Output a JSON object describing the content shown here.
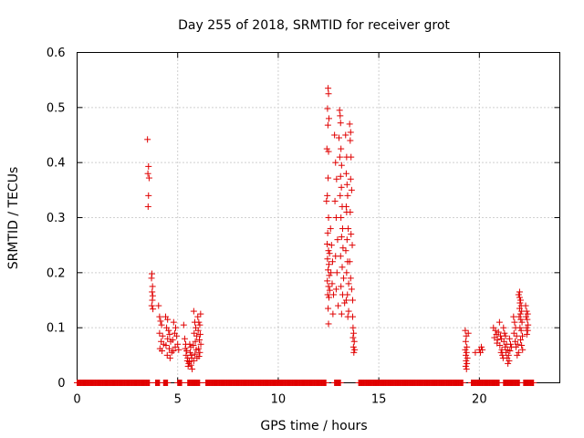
{
  "chart_data": {
    "type": "scatter",
    "title": "Day 255 of 2018, SRMTID for receiver grot",
    "xlabel": "GPS time / hours",
    "ylabel": "SRMTID / TECUs",
    "xlim": [
      0,
      24
    ],
    "ylim": [
      0,
      0.6
    ],
    "grid": true,
    "marker": "+",
    "marker_color": "#e00000",
    "x_ticks": [
      {
        "value": 0,
        "label": "0"
      },
      {
        "value": 5,
        "label": "5"
      },
      {
        "value": 10,
        "label": "10"
      },
      {
        "value": 15,
        "label": "15"
      },
      {
        "value": 20,
        "label": "20"
      }
    ],
    "y_ticks": [
      {
        "value": 0,
        "label": "0"
      },
      {
        "value": 0.1,
        "label": "0.1"
      },
      {
        "value": 0.2,
        "label": "0.2"
      },
      {
        "value": 0.3,
        "label": "0.3"
      },
      {
        "value": 0.4,
        "label": "0.4"
      },
      {
        "value": 0.5,
        "label": "0.5"
      },
      {
        "value": 0.6,
        "label": "0.6"
      }
    ],
    "zero_segments": [
      [
        0.0,
        3.6
      ],
      [
        3.9,
        4.1
      ],
      [
        4.3,
        4.5
      ],
      [
        5.0,
        5.2
      ],
      [
        5.5,
        6.1
      ],
      [
        6.4,
        12.4
      ],
      [
        12.8,
        13.1
      ],
      [
        14.0,
        19.2
      ],
      [
        19.6,
        21.0
      ],
      [
        21.2,
        22.0
      ],
      [
        22.2,
        22.7
      ]
    ],
    "points": [
      [
        3.5,
        0.442
      ],
      [
        3.55,
        0.393
      ],
      [
        3.52,
        0.38
      ],
      [
        3.58,
        0.372
      ],
      [
        3.55,
        0.34
      ],
      [
        3.53,
        0.32
      ],
      [
        3.72,
        0.198
      ],
      [
        3.7,
        0.19
      ],
      [
        3.75,
        0.175
      ],
      [
        3.73,
        0.165
      ],
      [
        3.76,
        0.158
      ],
      [
        3.74,
        0.15
      ],
      [
        3.71,
        0.14
      ],
      [
        3.77,
        0.134
      ],
      [
        4.05,
        0.14
      ],
      [
        4.1,
        0.12
      ],
      [
        4.15,
        0.112
      ],
      [
        4.2,
        0.105
      ],
      [
        4.1,
        0.09
      ],
      [
        4.25,
        0.085
      ],
      [
        4.18,
        0.075
      ],
      [
        4.3,
        0.07
      ],
      [
        4.12,
        0.062
      ],
      [
        4.22,
        0.058
      ],
      [
        4.4,
        0.12
      ],
      [
        4.5,
        0.115
      ],
      [
        4.45,
        0.1
      ],
      [
        4.55,
        0.095
      ],
      [
        4.6,
        0.088
      ],
      [
        4.5,
        0.08
      ],
      [
        4.65,
        0.075
      ],
      [
        4.42,
        0.068
      ],
      [
        4.58,
        0.062
      ],
      [
        4.7,
        0.055
      ],
      [
        4.48,
        0.05
      ],
      [
        4.62,
        0.045
      ],
      [
        4.8,
        0.11
      ],
      [
        4.9,
        0.1
      ],
      [
        4.85,
        0.09
      ],
      [
        4.95,
        0.085
      ],
      [
        4.75,
        0.078
      ],
      [
        5.0,
        0.07
      ],
      [
        4.88,
        0.065
      ],
      [
        5.05,
        0.06
      ],
      [
        4.78,
        0.058
      ],
      [
        5.3,
        0.105
      ],
      [
        5.35,
        0.08
      ],
      [
        5.4,
        0.07
      ],
      [
        5.38,
        0.062
      ],
      [
        5.45,
        0.058
      ],
      [
        5.42,
        0.05
      ],
      [
        5.5,
        0.045
      ],
      [
        5.48,
        0.04
      ],
      [
        5.55,
        0.035
      ],
      [
        5.52,
        0.03
      ],
      [
        5.6,
        0.07
      ],
      [
        5.65,
        0.065
      ],
      [
        5.62,
        0.055
      ],
      [
        5.68,
        0.05
      ],
      [
        5.7,
        0.045
      ],
      [
        5.58,
        0.038
      ],
      [
        5.66,
        0.032
      ],
      [
        5.72,
        0.025
      ],
      [
        5.8,
        0.13
      ],
      [
        5.85,
        0.11
      ],
      [
        5.9,
        0.1
      ],
      [
        5.82,
        0.09
      ],
      [
        5.95,
        0.085
      ],
      [
        5.88,
        0.075
      ],
      [
        5.78,
        0.068
      ],
      [
        5.92,
        0.06
      ],
      [
        5.86,
        0.052
      ],
      [
        5.96,
        0.045
      ],
      [
        5.8,
        0.04
      ],
      [
        6.0,
        0.12
      ],
      [
        6.05,
        0.11
      ],
      [
        6.1,
        0.105
      ],
      [
        6.02,
        0.095
      ],
      [
        6.12,
        0.088
      ],
      [
        6.08,
        0.078
      ],
      [
        6.15,
        0.07
      ],
      [
        6.04,
        0.062
      ],
      [
        6.1,
        0.055
      ],
      [
        6.06,
        0.048
      ],
      [
        6.14,
        0.125
      ],
      [
        12.48,
        0.535
      ],
      [
        12.5,
        0.525
      ],
      [
        12.45,
        0.498
      ],
      [
        12.52,
        0.48
      ],
      [
        12.47,
        0.468
      ],
      [
        12.42,
        0.425
      ],
      [
        12.5,
        0.42
      ],
      [
        12.48,
        0.372
      ],
      [
        12.44,
        0.34
      ],
      [
        12.4,
        0.33
      ],
      [
        12.5,
        0.3
      ],
      [
        12.46,
        0.272
      ],
      [
        12.43,
        0.252
      ],
      [
        12.5,
        0.24
      ],
      [
        12.55,
        0.235
      ],
      [
        12.45,
        0.225
      ],
      [
        12.52,
        0.215
      ],
      [
        12.48,
        0.205
      ],
      [
        12.54,
        0.195
      ],
      [
        12.44,
        0.185
      ],
      [
        12.5,
        0.175
      ],
      [
        12.56,
        0.168
      ],
      [
        12.46,
        0.16
      ],
      [
        12.52,
        0.155
      ],
      [
        12.48,
        0.135
      ],
      [
        12.5,
        0.107
      ],
      [
        12.6,
        0.28
      ],
      [
        12.65,
        0.25
      ],
      [
        12.7,
        0.22
      ],
      [
        12.62,
        0.2
      ],
      [
        12.68,
        0.18
      ],
      [
        12.75,
        0.16
      ],
      [
        12.72,
        0.125
      ],
      [
        12.8,
        0.45
      ],
      [
        12.85,
        0.4
      ],
      [
        12.9,
        0.37
      ],
      [
        12.82,
        0.33
      ],
      [
        12.88,
        0.3
      ],
      [
        12.95,
        0.26
      ],
      [
        12.85,
        0.23
      ],
      [
        12.92,
        0.2
      ],
      [
        12.88,
        0.17
      ],
      [
        12.98,
        0.14
      ],
      [
        13.05,
        0.495
      ],
      [
        13.08,
        0.485
      ],
      [
        13.1,
        0.472
      ],
      [
        13.02,
        0.445
      ],
      [
        13.12,
        0.425
      ],
      [
        13.06,
        0.41
      ],
      [
        13.15,
        0.395
      ],
      [
        13.1,
        0.375
      ],
      [
        13.14,
        0.355
      ],
      [
        13.08,
        0.34
      ],
      [
        13.18,
        0.32
      ],
      [
        13.12,
        0.3
      ],
      [
        13.2,
        0.28
      ],
      [
        13.15,
        0.265
      ],
      [
        13.22,
        0.245
      ],
      [
        13.1,
        0.23
      ],
      [
        13.18,
        0.21
      ],
      [
        13.25,
        0.19
      ],
      [
        13.12,
        0.175
      ],
      [
        13.2,
        0.16
      ],
      [
        13.3,
        0.145
      ],
      [
        13.15,
        0.125
      ],
      [
        13.35,
        0.45
      ],
      [
        13.4,
        0.41
      ],
      [
        13.38,
        0.38
      ],
      [
        13.42,
        0.36
      ],
      [
        13.45,
        0.34
      ],
      [
        13.38,
        0.32
      ],
      [
        13.4,
        0.31
      ],
      [
        13.48,
        0.28
      ],
      [
        13.42,
        0.26
      ],
      [
        13.36,
        0.24
      ],
      [
        13.45,
        0.22
      ],
      [
        13.4,
        0.2
      ],
      [
        13.5,
        0.18
      ],
      [
        13.44,
        0.16
      ],
      [
        13.38,
        0.15
      ],
      [
        13.5,
        0.13
      ],
      [
        13.46,
        0.12
      ],
      [
        13.55,
        0.47
      ],
      [
        13.6,
        0.455
      ],
      [
        13.58,
        0.44
      ],
      [
        13.62,
        0.41
      ],
      [
        13.6,
        0.37
      ],
      [
        13.65,
        0.35
      ],
      [
        13.58,
        0.31
      ],
      [
        13.62,
        0.27
      ],
      [
        13.68,
        0.25
      ],
      [
        13.55,
        0.22
      ],
      [
        13.6,
        0.19
      ],
      [
        13.65,
        0.17
      ],
      [
        13.7,
        0.15
      ],
      [
        13.7,
        0.12
      ],
      [
        13.72,
        0.1
      ],
      [
        13.75,
        0.09
      ],
      [
        13.72,
        0.082
      ],
      [
        13.78,
        0.075
      ],
      [
        13.74,
        0.065
      ],
      [
        13.8,
        0.06
      ],
      [
        13.76,
        0.055
      ],
      [
        19.3,
        0.095
      ],
      [
        19.35,
        0.085
      ],
      [
        19.32,
        0.075
      ],
      [
        19.38,
        0.065
      ],
      [
        19.3,
        0.06
      ],
      [
        19.36,
        0.055
      ],
      [
        19.33,
        0.05
      ],
      [
        19.4,
        0.045
      ],
      [
        19.34,
        0.04
      ],
      [
        19.38,
        0.035
      ],
      [
        19.32,
        0.03
      ],
      [
        19.36,
        0.025
      ],
      [
        19.45,
        0.09
      ],
      [
        19.8,
        0.055
      ],
      [
        20.0,
        0.06
      ],
      [
        20.05,
        0.055
      ],
      [
        20.1,
        0.065
      ],
      [
        20.15,
        0.06
      ],
      [
        20.7,
        0.1
      ],
      [
        20.8,
        0.095
      ],
      [
        20.85,
        0.088
      ],
      [
        20.75,
        0.082
      ],
      [
        20.9,
        0.078
      ],
      [
        20.95,
        0.092
      ],
      [
        20.88,
        0.072
      ],
      [
        21.0,
        0.11
      ],
      [
        21.05,
        0.085
      ],
      [
        21.1,
        0.08
      ],
      [
        21.02,
        0.068
      ],
      [
        21.12,
        0.06
      ],
      [
        21.08,
        0.055
      ],
      [
        21.15,
        0.05
      ],
      [
        21.18,
        0.045
      ],
      [
        21.2,
        0.1
      ],
      [
        21.25,
        0.09
      ],
      [
        21.3,
        0.085
      ],
      [
        21.22,
        0.075
      ],
      [
        21.35,
        0.07
      ],
      [
        21.28,
        0.065
      ],
      [
        21.4,
        0.06
      ],
      [
        21.32,
        0.055
      ],
      [
        21.45,
        0.05
      ],
      [
        21.38,
        0.045
      ],
      [
        21.48,
        0.04
      ],
      [
        21.42,
        0.035
      ],
      [
        21.5,
        0.08
      ],
      [
        21.55,
        0.07
      ],
      [
        21.6,
        0.065
      ],
      [
        21.52,
        0.058
      ],
      [
        21.7,
        0.12
      ],
      [
        21.75,
        0.11
      ],
      [
        21.8,
        0.1
      ],
      [
        21.72,
        0.09
      ],
      [
        21.85,
        0.085
      ],
      [
        21.78,
        0.075
      ],
      [
        21.9,
        0.07
      ],
      [
        21.82,
        0.065
      ],
      [
        21.95,
        0.055
      ],
      [
        21.88,
        0.05
      ],
      [
        21.95,
        0.16
      ],
      [
        22.0,
        0.155
      ],
      [
        22.05,
        0.15
      ],
      [
        22.02,
        0.145
      ],
      [
        22.08,
        0.14
      ],
      [
        22.0,
        0.135
      ],
      [
        22.1,
        0.13
      ],
      [
        22.04,
        0.125
      ],
      [
        21.98,
        0.12
      ],
      [
        22.06,
        0.115
      ],
      [
        22.12,
        0.11
      ],
      [
        22.02,
        0.1
      ],
      [
        22.08,
        0.095
      ],
      [
        22.14,
        0.085
      ],
      [
        22.05,
        0.078
      ],
      [
        22.1,
        0.068
      ],
      [
        22.0,
        0.165
      ],
      [
        22.15,
        0.06
      ],
      [
        22.3,
        0.14
      ],
      [
        22.35,
        0.13
      ],
      [
        22.4,
        0.125
      ],
      [
        22.32,
        0.12
      ],
      [
        22.38,
        0.115
      ],
      [
        22.42,
        0.105
      ],
      [
        22.34,
        0.1
      ],
      [
        22.4,
        0.095
      ],
      [
        22.36,
        0.088
      ]
    ]
  }
}
